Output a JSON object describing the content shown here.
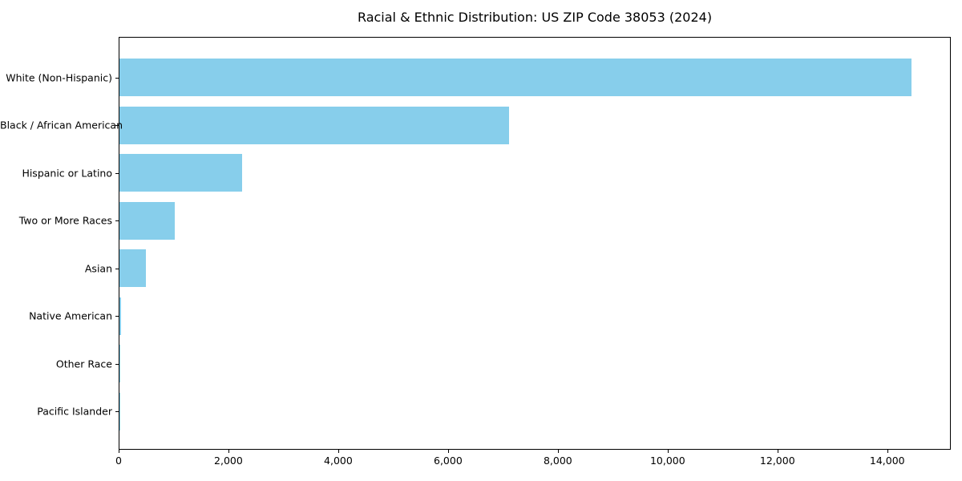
{
  "chart_data": {
    "type": "bar",
    "orientation": "horizontal",
    "title": "Racial & Ethnic Distribution: US ZIP Code 38053 (2024)",
    "categories": [
      "White (Non-Hispanic)",
      "Black / African American",
      "Hispanic or Latino",
      "Two or More Races",
      "Asian",
      "Native American",
      "Other Race",
      "Pacific Islander"
    ],
    "values": [
      14430,
      7100,
      2230,
      1010,
      480,
      30,
      15,
      8
    ],
    "xlabel": "",
    "ylabel": "",
    "xlim": [
      0,
      15157
    ],
    "x_ticks": [
      0,
      2000,
      4000,
      6000,
      8000,
      10000,
      12000,
      14000
    ],
    "x_tick_labels": [
      "0",
      "2,000",
      "4,000",
      "6,000",
      "8,000",
      "10,000",
      "12,000",
      "14,000"
    ],
    "bar_color": "#87CEEB",
    "axis_color": "#000000",
    "text_color": "#000000",
    "background_color": "#ffffff",
    "grid": false,
    "legend": null
  }
}
